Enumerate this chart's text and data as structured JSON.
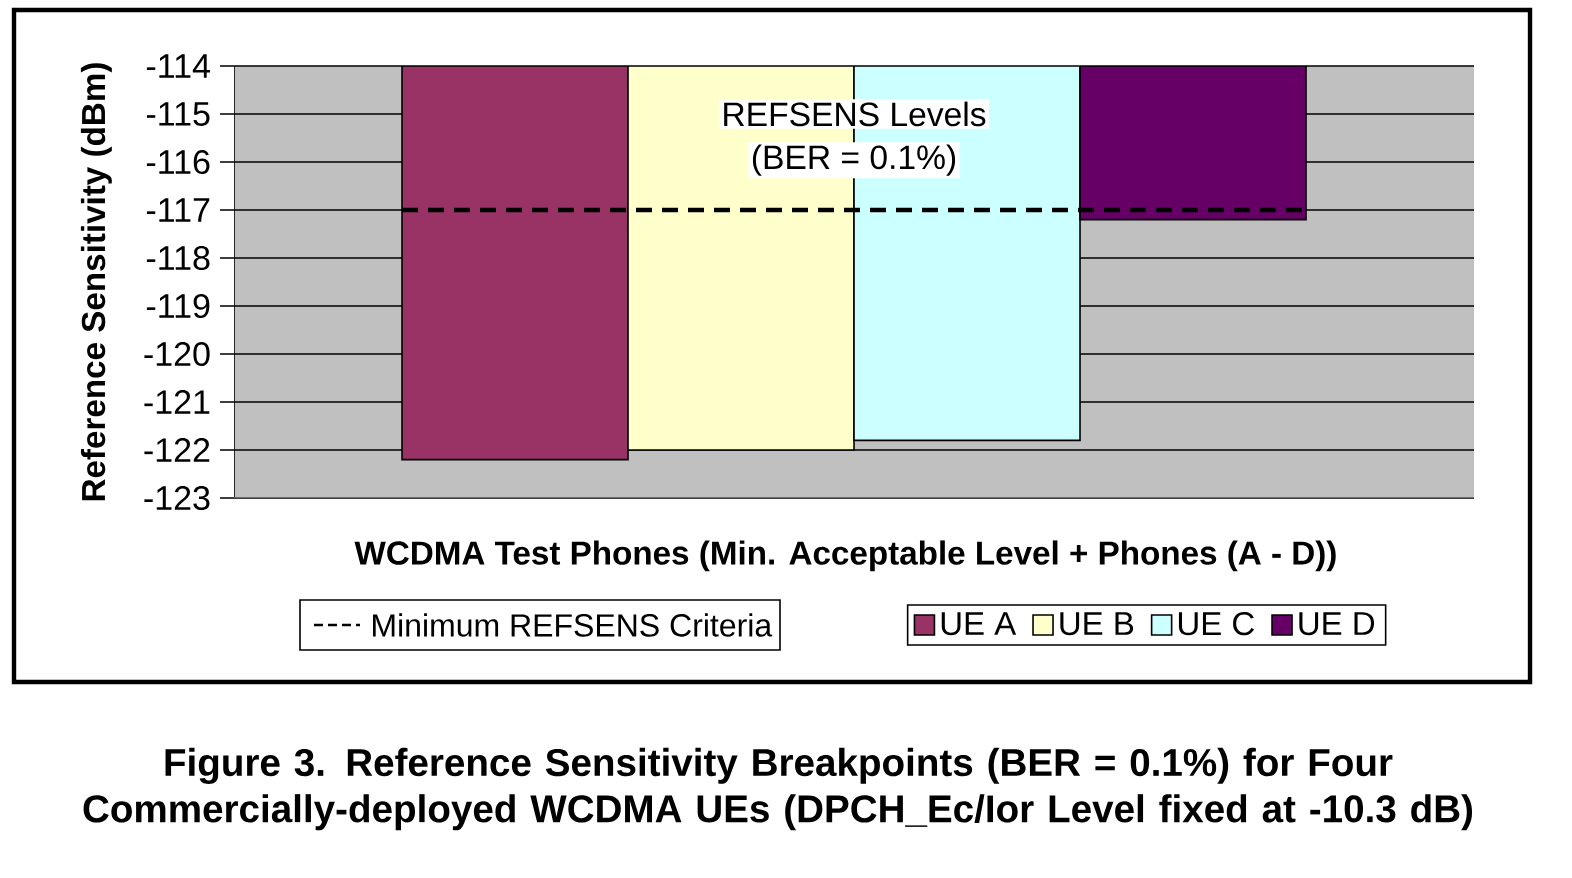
{
  "chart_data": {
    "type": "bar",
    "title": "Figure 3. Reference Sensitivity Breakpoints (BER = 0.1%) for Four Commercially-deployed WCDMA UEs (DPCH_Ec/Ior Level fixed at -10.3 dB)",
    "xlabel": "WCDMA Test Phones (Min. Acceptable Level + Phones (A - D))",
    "ylabel": "Reference Sensitivity (dBm)",
    "categories": [
      null
    ],
    "series": [
      {
        "name": "UE A",
        "color": "#993366",
        "values": [
          -122.2
        ]
      },
      {
        "name": "UE B",
        "color": "#FFFFCC",
        "values": [
          -122.0
        ]
      },
      {
        "name": "UE C",
        "color": "#CCFFFF",
        "values": [
          -121.8
        ]
      },
      {
        "name": "UE D",
        "color": "#660066",
        "values": [
          -117.2
        ]
      }
    ],
    "ylim": [
      -123,
      -114
    ],
    "yticks": [
      -123,
      -122,
      -121,
      -120,
      -119,
      -118,
      -117,
      -116,
      -115,
      -114
    ],
    "grid": "y",
    "legend": "bottom",
    "ref_lines": [
      {
        "axis": "y",
        "value": -117,
        "label": "Minimum REFSENS Criteria",
        "line_style": "dashed",
        "color": "#000000"
      }
    ],
    "annotations": [
      "REFSENS Levels",
      "(BER = 0.1%)"
    ]
  }
}
